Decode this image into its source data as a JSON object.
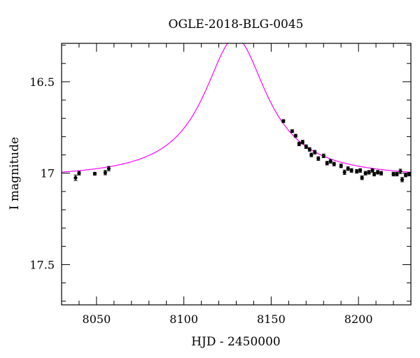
{
  "chart_data": {
    "type": "scatter",
    "title": "OGLE-2018-BLG-0045",
    "xlabel": "HJD - 2450000",
    "ylabel": "I magnitude",
    "xlim": [
      8030,
      8230
    ],
    "ylim": [
      17.72,
      16.29
    ],
    "y_inverted": true,
    "x_ticks": [
      8050,
      8100,
      8150,
      8200
    ],
    "y_ticks": [
      16.5,
      17,
      17.5
    ],
    "x_tick_labels": [
      "8050",
      "8100",
      "8150",
      "8200"
    ],
    "y_tick_labels": [
      "16.5",
      "17",
      "17.5"
    ],
    "grid": false,
    "colors": {
      "model": "#ff00ff",
      "points": "#000000"
    },
    "series": [
      {
        "type": "scatter",
        "points": [
          {
            "x": 8038,
            "y": 17.025,
            "err": 0.015
          },
          {
            "x": 8040,
            "y": 17.0,
            "err": 0.01
          },
          {
            "x": 8049,
            "y": 17.003,
            "err": 0.008
          },
          {
            "x": 8055,
            "y": 16.997,
            "err": 0.012
          },
          {
            "x": 8057,
            "y": 16.975,
            "err": 0.012
          },
          {
            "x": 8157,
            "y": 16.715,
            "err": 0.008
          },
          {
            "x": 8162,
            "y": 16.77,
            "err": 0.008
          },
          {
            "x": 8164,
            "y": 16.795,
            "err": 0.008
          },
          {
            "x": 8166,
            "y": 16.84,
            "err": 0.01
          },
          {
            "x": 8168,
            "y": 16.83,
            "err": 0.01
          },
          {
            "x": 8170,
            "y": 16.855,
            "err": 0.01
          },
          {
            "x": 8172,
            "y": 16.87,
            "err": 0.01
          },
          {
            "x": 8173,
            "y": 16.9,
            "err": 0.01
          },
          {
            "x": 8175,
            "y": 16.885,
            "err": 0.01
          },
          {
            "x": 8177,
            "y": 16.92,
            "err": 0.01
          },
          {
            "x": 8180,
            "y": 16.905,
            "err": 0.01
          },
          {
            "x": 8182,
            "y": 16.945,
            "err": 0.01
          },
          {
            "x": 8184,
            "y": 16.935,
            "err": 0.01
          },
          {
            "x": 8186,
            "y": 16.95,
            "err": 0.01
          },
          {
            "x": 8190,
            "y": 16.96,
            "err": 0.01
          },
          {
            "x": 8192,
            "y": 16.995,
            "err": 0.012
          },
          {
            "x": 8194,
            "y": 16.975,
            "err": 0.01
          },
          {
            "x": 8196,
            "y": 16.985,
            "err": 0.01
          },
          {
            "x": 8199,
            "y": 16.99,
            "err": 0.01
          },
          {
            "x": 8201,
            "y": 16.985,
            "err": 0.01
          },
          {
            "x": 8202,
            "y": 17.025,
            "err": 0.01
          },
          {
            "x": 8204,
            "y": 17.0,
            "err": 0.01
          },
          {
            "x": 8206,
            "y": 16.995,
            "err": 0.01
          },
          {
            "x": 8208,
            "y": 16.985,
            "err": 0.01
          },
          {
            "x": 8209,
            "y": 17.005,
            "err": 0.01
          },
          {
            "x": 8211,
            "y": 16.995,
            "err": 0.01
          },
          {
            "x": 8213,
            "y": 17.0,
            "err": 0.01
          },
          {
            "x": 8220,
            "y": 17.005,
            "err": 0.01
          },
          {
            "x": 8222,
            "y": 17.005,
            "err": 0.01
          },
          {
            "x": 8224,
            "y": 16.99,
            "err": 0.012
          },
          {
            "x": 8225,
            "y": 17.035,
            "err": 0.012
          },
          {
            "x": 8227,
            "y": 17.01,
            "err": 0.01
          },
          {
            "x": 8229,
            "y": 17.005,
            "err": 0.01
          }
        ]
      },
      {
        "type": "line",
        "model": {
          "t0": 8129.5,
          "base": 17.03,
          "amplitude": 0.77,
          "width": 22
        }
      }
    ]
  }
}
